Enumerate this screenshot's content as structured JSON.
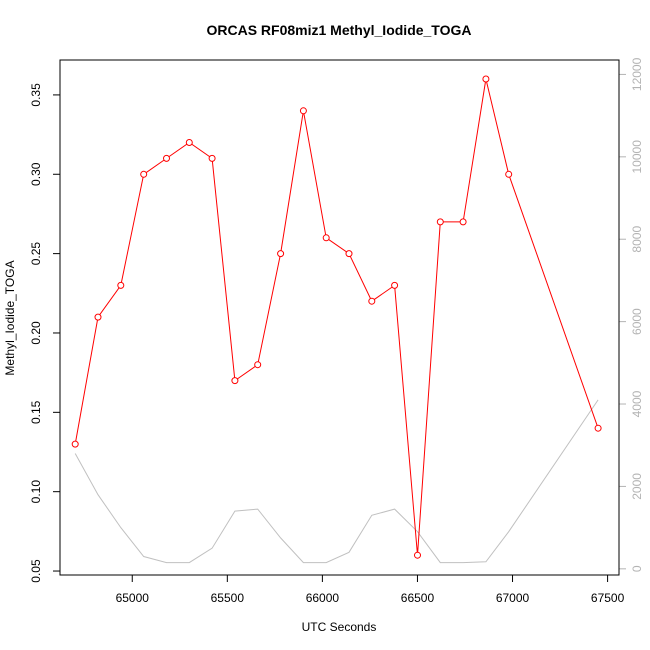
{
  "chart_data": {
    "type": "line",
    "title": "ORCAS RF08miz1 Methyl_Iodide_TOGA",
    "xlabel": "UTC Seconds",
    "ylabel": "Methyl_Iodide_TOGA",
    "xlim": [
      64620,
      67560
    ],
    "ylim": [
      0.0475,
      0.372
    ],
    "y2lim": [
      -150,
      12350
    ],
    "x_ticks": [
      65000,
      65500,
      66000,
      66500,
      67000,
      67500
    ],
    "y_ticks": [
      0.05,
      0.1,
      0.15,
      0.2,
      0.25,
      0.3,
      0.35
    ],
    "y_tick_labels": [
      "0.05",
      "0.10",
      "0.15",
      "0.20",
      "0.25",
      "0.30",
      "0.35"
    ],
    "y2_ticks": [
      0,
      2000,
      4000,
      6000,
      8000,
      10000,
      12000
    ],
    "colors": {
      "series": "#ff0000",
      "secondary": "#c0c0c0",
      "secondary_axis": "#b3b3b3"
    },
    "series": [
      {
        "x": [
          64700,
          64820,
          64940,
          65060,
          65180,
          65300,
          65420,
          65540,
          65660,
          65780,
          65900,
          66020,
          66140,
          66260,
          66380,
          66500,
          66620,
          66740,
          66860,
          66980,
          67450
        ],
        "y": [
          0.13,
          0.21,
          0.23,
          0.3,
          0.31,
          0.32,
          0.31,
          0.17,
          0.18,
          0.25,
          0.34,
          0.26,
          0.25,
          0.22,
          0.23,
          0.06,
          0.27,
          0.27,
          0.36,
          0.3,
          0.14
        ]
      },
      {
        "x": [
          64700,
          64820,
          64940,
          65060,
          65180,
          65300,
          65420,
          65540,
          65660,
          65780,
          65900,
          66020,
          66140,
          66260,
          66380,
          66500,
          66620,
          66740,
          66860,
          66980,
          67450
        ],
        "y": [
          2800,
          1800,
          1000,
          300,
          150,
          150,
          500,
          1400,
          1450,
          750,
          150,
          150,
          400,
          1300,
          1450,
          900,
          150,
          150,
          170,
          900,
          4100
        ]
      }
    ]
  }
}
